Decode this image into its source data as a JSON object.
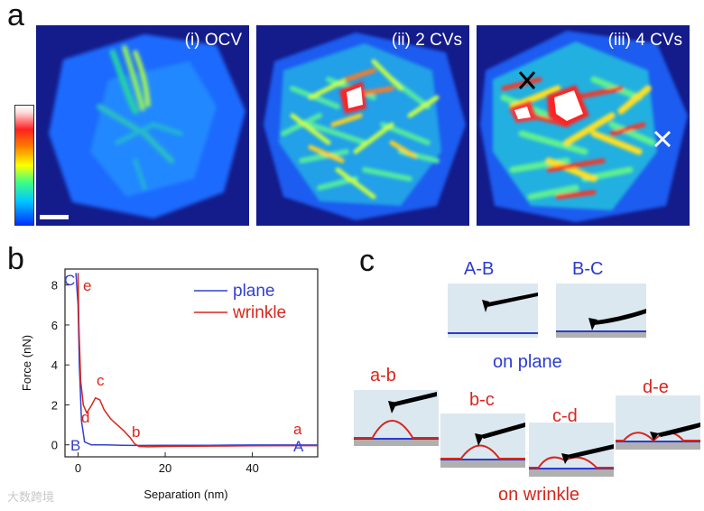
{
  "panel_a": {
    "letter": "a",
    "maps": [
      {
        "label": "(i) OCV"
      },
      {
        "label": "(ii) 2 CVs"
      },
      {
        "label": "(iii) 4 CVs"
      }
    ],
    "colors": {
      "low": "#0030ff",
      "mid": "#ffff00",
      "high": "#ff2020",
      "max": "#ffffff"
    }
  },
  "panel_b": {
    "letter": "b",
    "point_labels": {
      "C": "C",
      "e": "e",
      "c": "c",
      "d": "d",
      "b": "b",
      "a": "a",
      "B": "B",
      "A": "A"
    },
    "legend": {
      "plane": "plane",
      "wrinkle": "wrinkle"
    },
    "chart_data": {
      "type": "line",
      "xlabel": "Separation (nm)",
      "ylabel": "Force (nN)",
      "xlim": [
        -3,
        55
      ],
      "ylim": [
        -0.6,
        8.8
      ],
      "xticks": [
        0,
        20,
        40
      ],
      "yticks": [
        0,
        2,
        4,
        6,
        8
      ],
      "series": [
        {
          "name": "plane",
          "color": "#3340d0",
          "x": [
            -0.5,
            0.0,
            0.3,
            0.8,
            1.5,
            3,
            6,
            10,
            13,
            15,
            20,
            30,
            40,
            50,
            55
          ],
          "y": [
            8.6,
            7.0,
            4.0,
            1.2,
            0.15,
            0.0,
            0.0,
            -0.02,
            -0.03,
            -0.03,
            -0.02,
            -0.02,
            -0.01,
            -0.01,
            -0.01
          ]
        },
        {
          "name": "wrinkle",
          "color": "#d8261c",
          "x": [
            0.0,
            0.2,
            0.6,
            1.2,
            2.0,
            3.0,
            4.0,
            5.0,
            6.0,
            7.5,
            9.0,
            10.5,
            12.0,
            13.0,
            14.0,
            16,
            20,
            30,
            40,
            50,
            55
          ],
          "y": [
            8.6,
            6.0,
            3.2,
            2.0,
            1.6,
            1.95,
            2.35,
            2.25,
            1.75,
            1.3,
            1.0,
            0.7,
            0.35,
            0.05,
            -0.08,
            -0.1,
            -0.08,
            -0.06,
            -0.05,
            -0.04,
            -0.04
          ]
        }
      ]
    }
  },
  "panel_c": {
    "letter": "c",
    "labels": {
      "AB": "A-B",
      "BC": "B-C",
      "on_plane": "on plane",
      "ab": "a-b",
      "bc": "b-c",
      "cd": "c-d",
      "de": "d-e",
      "on_wrinkle": "on wrinkle"
    }
  },
  "watermark": "大数跨境"
}
